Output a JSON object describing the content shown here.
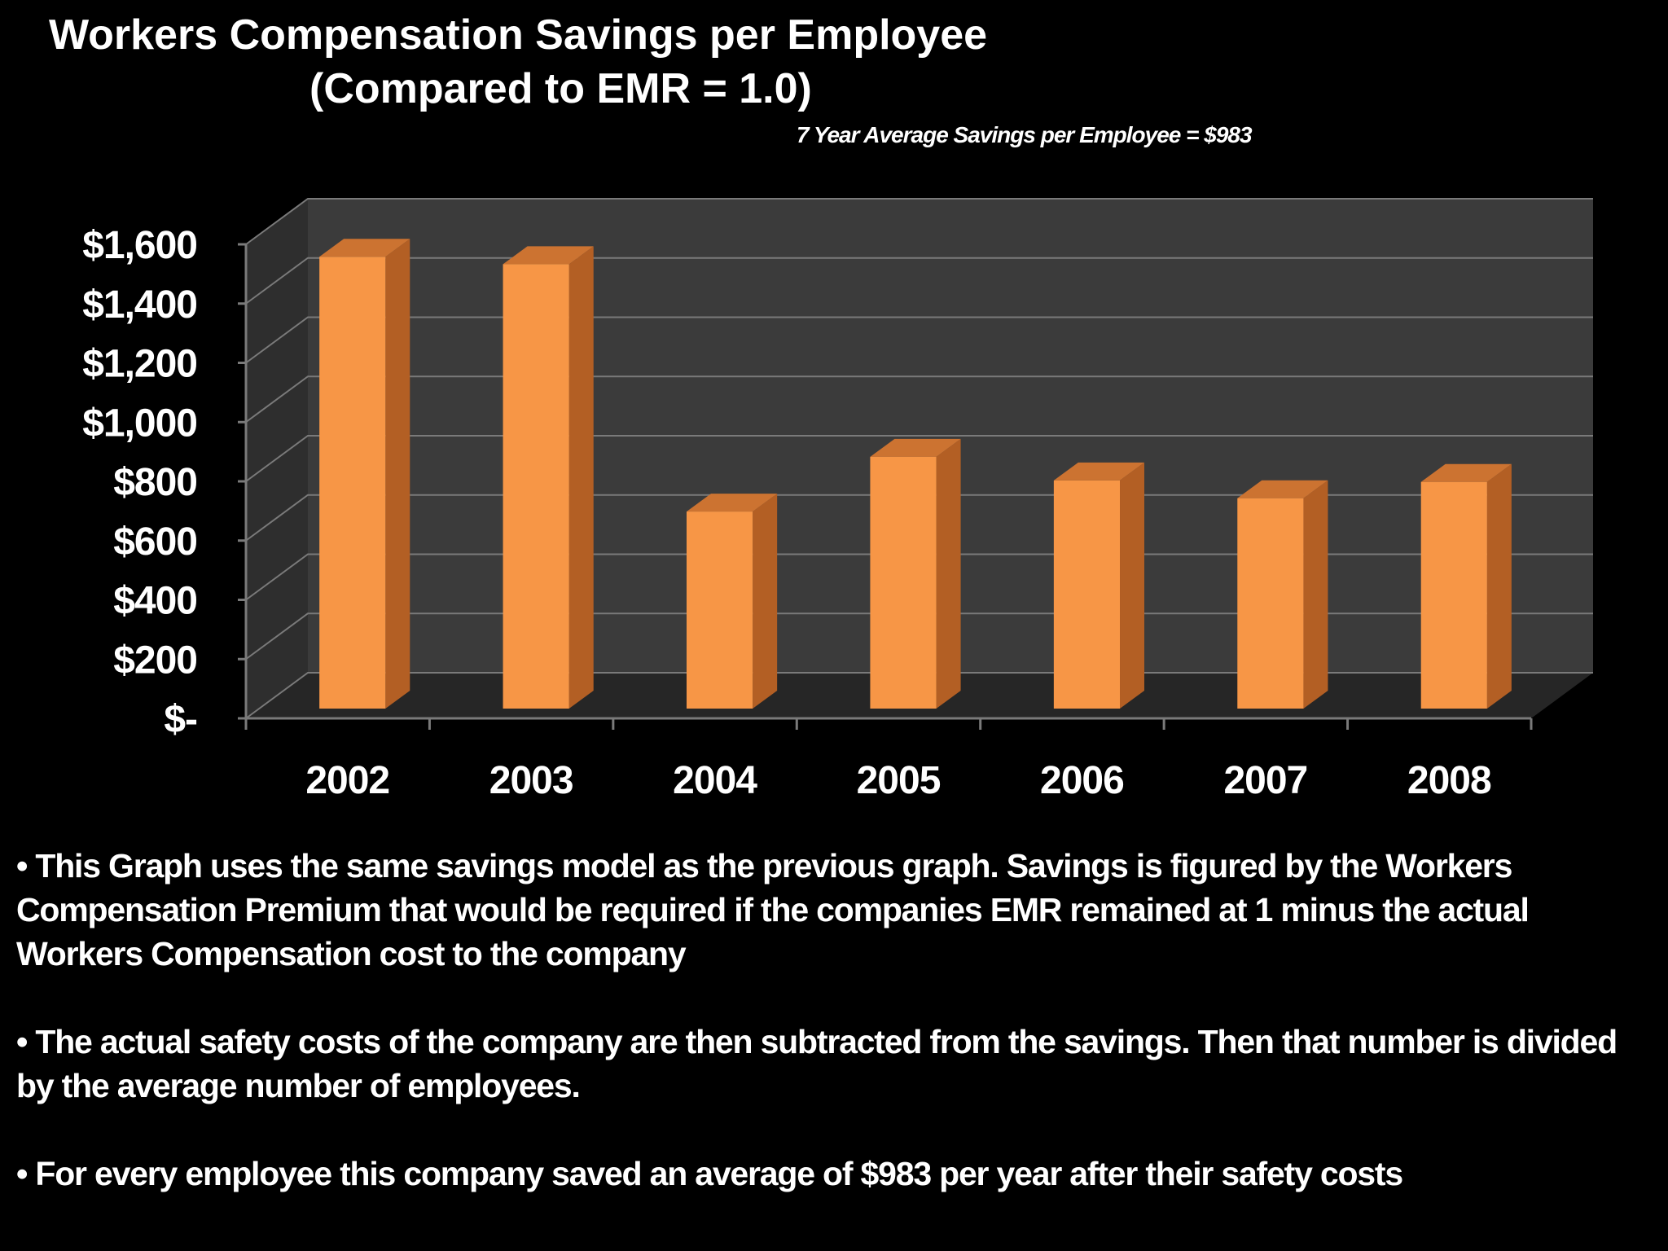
{
  "slide": {
    "title_line1": "Workers Compensation Savings per Employee",
    "title_line2": "(Compared to EMR = 1.0)",
    "subtitle": "7 Year Average Savings per Employee = $983",
    "notes": [
      "• This Graph uses the same savings model as the previous graph. Savings is figured by the Workers Compensation Premium that would be required if the companies EMR remained at 1 minus the actual Workers Compensation cost to the company",
      "• The actual safety costs of the company are then subtracted from the savings.  Then that number is divided by the average number of employees.",
      "• For every employee this company saved an average of $983 per year after their safety costs"
    ]
  },
  "colors": {
    "background": "#000000",
    "wall": "#3b3b3b",
    "floor": "#262626",
    "gridline": "#7a7a7a",
    "bar_front": "#f79646",
    "bar_side": "#b35f24",
    "bar_top": "#cc7331",
    "text": "#ffffff"
  },
  "chart_data": {
    "type": "bar",
    "title": "Workers Compensation Savings per Employee (Compared to EMR = 1.0)",
    "categories": [
      "2002",
      "2003",
      "2004",
      "2005",
      "2006",
      "2007",
      "2008"
    ],
    "values": [
      1525,
      1500,
      665,
      850,
      770,
      710,
      765
    ],
    "ylim": [
      0,
      1600
    ],
    "yticks": [
      0,
      200,
      400,
      600,
      800,
      1000,
      1200,
      1400,
      1600
    ],
    "ytick_labels": [
      "$-",
      "$200",
      "$400",
      "$600",
      "$800",
      "$1,000",
      "$1,200",
      "$1,400",
      "$1,600"
    ],
    "grid": true,
    "style": "3d-column"
  }
}
